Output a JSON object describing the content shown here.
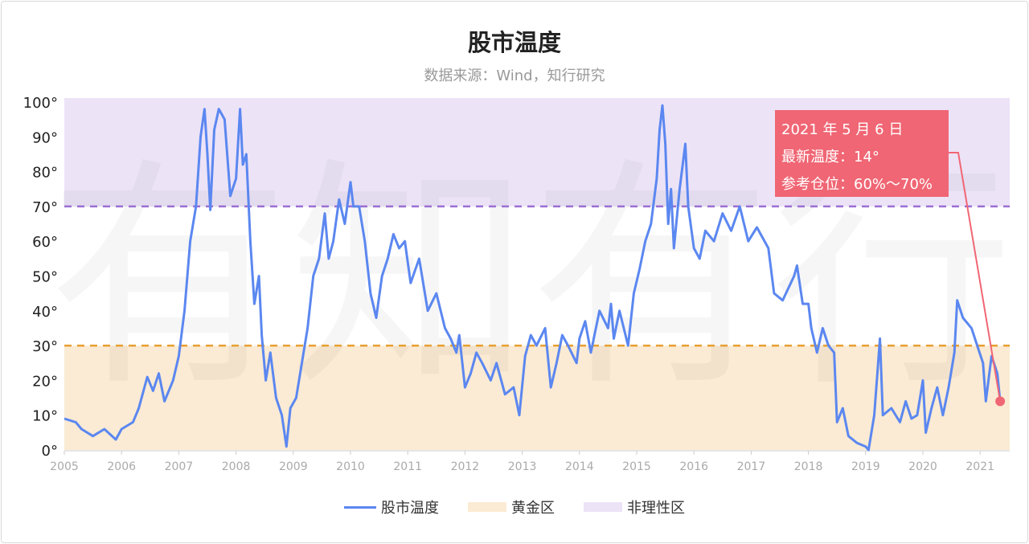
{
  "chart_data": {
    "type": "line",
    "title": "股市温度",
    "subtitle": "数据来源：Wind，知行研究",
    "watermark": "有知有行",
    "x_ticks": [
      "2005",
      "2006",
      "2007",
      "2008",
      "2009",
      "2010",
      "2011",
      "2012",
      "2013",
      "2014",
      "2015",
      "2016",
      "2017",
      "2018",
      "2019",
      "2020",
      "2021"
    ],
    "y_ticks": [
      "0°",
      "10°",
      "20°",
      "30°",
      "40°",
      "50°",
      "60°",
      "70°",
      "80°",
      "90°",
      "100°"
    ],
    "xlim": [
      2005,
      2021.5
    ],
    "ylim": [
      0,
      100
    ],
    "grid": false,
    "legend_position": "bottom",
    "legend": [
      "股市温度",
      "黄金区",
      "非理性区"
    ],
    "bands": [
      {
        "name": "黄金区",
        "from": 0,
        "to": 30,
        "color": "#fbebd4",
        "line_color": "#e8a030"
      },
      {
        "name": "非理性区",
        "from": 70,
        "to": 100,
        "color": "#ece3f7",
        "line_color": "#9b6fd4"
      }
    ],
    "series": [
      {
        "name": "股市温度",
        "color": "#5b87f0",
        "x": [
          2005.0,
          2005.2,
          2005.3,
          2005.5,
          2005.7,
          2005.9,
          2006.0,
          2006.2,
          2006.3,
          2006.45,
          2006.55,
          2006.65,
          2006.75,
          2006.9,
          2007.0,
          2007.1,
          2007.2,
          2007.3,
          2007.38,
          2007.45,
          2007.5,
          2007.55,
          2007.62,
          2007.7,
          2007.8,
          2007.9,
          2008.0,
          2008.07,
          2008.12,
          2008.18,
          2008.25,
          2008.32,
          2008.4,
          2008.45,
          2008.52,
          2008.6,
          2008.7,
          2008.8,
          2008.88,
          2008.95,
          2009.05,
          2009.15,
          2009.25,
          2009.35,
          2009.45,
          2009.55,
          2009.62,
          2009.7,
          2009.8,
          2009.9,
          2010.0,
          2010.05,
          2010.15,
          2010.25,
          2010.35,
          2010.45,
          2010.55,
          2010.65,
          2010.75,
          2010.85,
          2010.95,
          2011.05,
          2011.2,
          2011.35,
          2011.5,
          2011.65,
          2011.75,
          2011.85,
          2011.9,
          2012.0,
          2012.1,
          2012.2,
          2012.3,
          2012.45,
          2012.55,
          2012.7,
          2012.85,
          2012.95,
          2013.05,
          2013.15,
          2013.25,
          2013.4,
          2013.5,
          2013.6,
          2013.7,
          2013.8,
          2013.95,
          2014.0,
          2014.1,
          2014.2,
          2014.35,
          2014.5,
          2014.55,
          2014.6,
          2014.7,
          2014.85,
          2014.95,
          2015.05,
          2015.15,
          2015.25,
          2015.35,
          2015.4,
          2015.45,
          2015.5,
          2015.55,
          2015.6,
          2015.65,
          2015.75,
          2015.85,
          2015.9,
          2016.0,
          2016.1,
          2016.2,
          2016.35,
          2016.5,
          2016.65,
          2016.8,
          2016.95,
          2017.1,
          2017.3,
          2017.4,
          2017.55,
          2017.75,
          2017.8,
          2017.9,
          2018.0,
          2018.05,
          2018.15,
          2018.25,
          2018.35,
          2018.45,
          2018.5,
          2018.6,
          2018.7,
          2018.85,
          2019.0,
          2019.05,
          2019.15,
          2019.25,
          2019.3,
          2019.45,
          2019.6,
          2019.7,
          2019.8,
          2019.9,
          2020.0,
          2020.05,
          2020.15,
          2020.25,
          2020.35,
          2020.45,
          2020.55,
          2020.6,
          2020.7,
          2020.85,
          2020.95,
          2021.05,
          2021.1,
          2021.2,
          2021.3,
          2021.35
        ],
        "values": [
          9,
          8,
          6,
          4,
          6,
          3,
          6,
          8,
          12,
          21,
          17,
          22,
          14,
          20,
          27,
          40,
          60,
          70,
          90,
          98,
          85,
          69,
          92,
          98,
          95,
          73,
          78,
          98,
          82,
          85,
          60,
          42,
          50,
          33,
          20,
          28,
          15,
          10,
          1,
          12,
          15,
          25,
          35,
          50,
          55,
          68,
          55,
          60,
          72,
          65,
          77,
          70,
          70,
          60,
          45,
          38,
          50,
          55,
          62,
          58,
          60,
          48,
          55,
          40,
          45,
          35,
          32,
          28,
          33,
          18,
          22,
          28,
          25,
          20,
          25,
          16,
          18,
          10,
          27,
          33,
          30,
          35,
          18,
          25,
          33,
          30,
          25,
          32,
          37,
          28,
          40,
          35,
          42,
          32,
          40,
          30,
          45,
          52,
          60,
          65,
          78,
          92,
          99,
          88,
          65,
          75,
          58,
          75,
          88,
          70,
          58,
          55,
          63,
          60,
          68,
          63,
          70,
          60,
          64,
          58,
          45,
          43,
          50,
          53,
          42,
          42,
          35,
          28,
          35,
          30,
          28,
          8,
          12,
          4,
          2,
          1,
          0,
          10,
          32,
          10,
          12,
          8,
          14,
          9,
          10,
          20,
          5,
          12,
          18,
          10,
          18,
          28,
          43,
          38,
          35,
          30,
          25,
          14,
          27,
          22,
          14
        ]
      }
    ],
    "annotation": {
      "date": "2021 年 5 月 6 日",
      "temperature": "最新温度：14°",
      "position": "参考仓位：60%～70%",
      "color": "#f06674"
    }
  }
}
